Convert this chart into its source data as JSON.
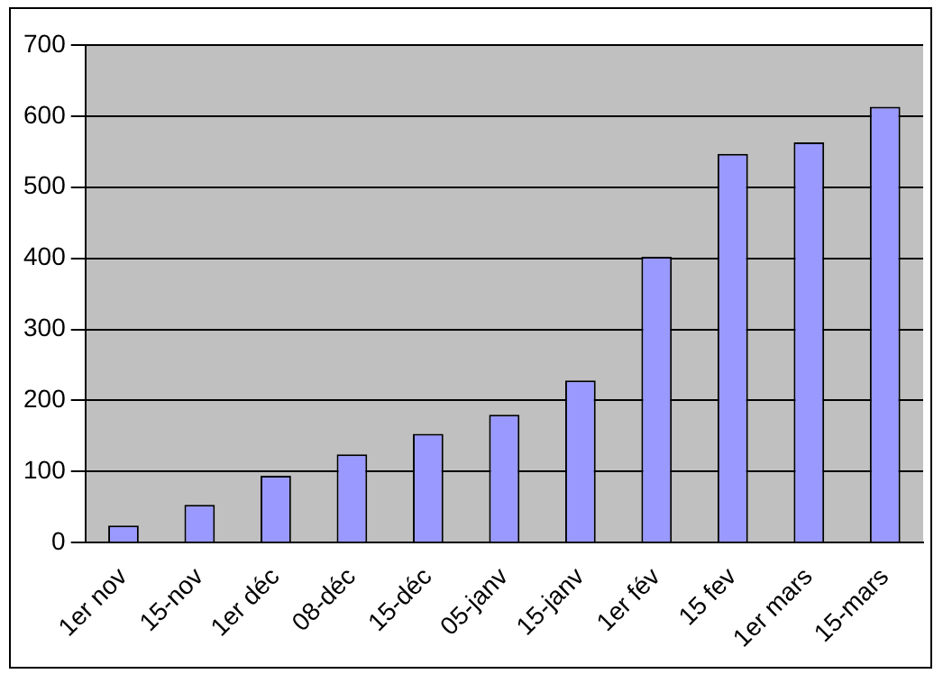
{
  "chart_data": {
    "type": "bar",
    "categories": [
      "1er nov",
      "15-nov",
      "1er déc",
      "08-déc",
      "15-déc",
      "05-janv",
      "15-janv",
      "1er fév",
      "15 fev",
      "1er mars",
      "15-mars"
    ],
    "values": [
      24,
      53,
      94,
      124,
      153,
      180,
      228,
      402,
      547,
      563,
      613
    ],
    "color": "#9999ff",
    "ylim": [
      0,
      700
    ],
    "yticks": [
      0,
      100,
      200,
      300,
      400,
      500,
      600,
      700
    ],
    "grid": "y"
  }
}
